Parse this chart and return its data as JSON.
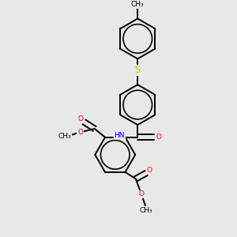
{
  "bg_color": "#e8e8e8",
  "bond_color": "#000000",
  "bond_width": 1.4,
  "atom_colors": {
    "O": "#ff0000",
    "N": "#0000cd",
    "S": "#cccc00",
    "C": "#000000",
    "H": "#888888"
  },
  "font_size": 6.5,
  "fig_width": 3.0,
  "fig_height": 3.0,
  "xlim": [
    0,
    10
  ],
  "ylim": [
    0,
    12
  ]
}
